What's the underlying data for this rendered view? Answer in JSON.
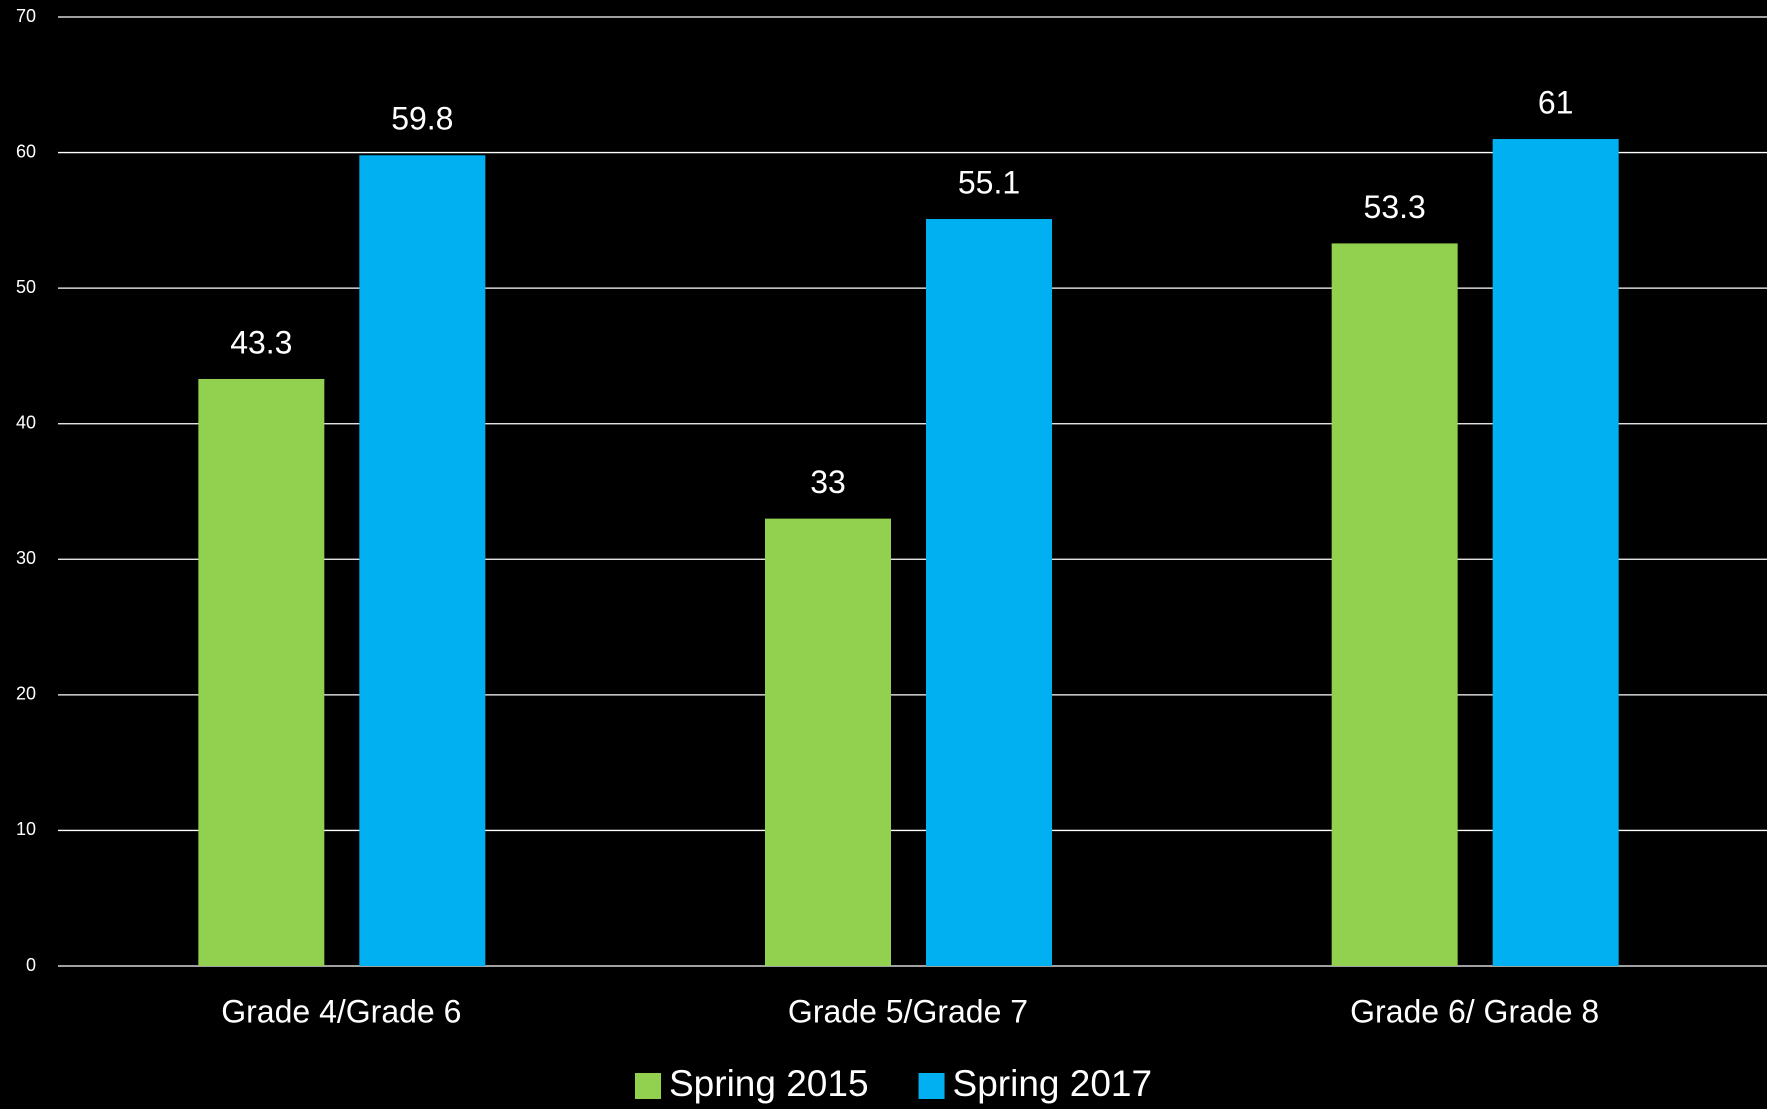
{
  "chart_data": {
    "type": "bar",
    "categories": [
      "Grade 4/Grade 6",
      "Grade 5/Grade 7",
      "Grade 6/ Grade 8"
    ],
    "series": [
      {
        "name": "Spring 2015",
        "color": "#92d050",
        "values": [
          43.3,
          33,
          53.3
        ]
      },
      {
        "name": "Spring 2017",
        "color": "#00b0f0",
        "values": [
          59.8,
          55.1,
          61
        ]
      }
    ],
    "ylim": [
      0,
      70
    ],
    "yticks": [
      0,
      10,
      20,
      30,
      40,
      50,
      60,
      70
    ],
    "grid": true,
    "legend": "bottom"
  }
}
